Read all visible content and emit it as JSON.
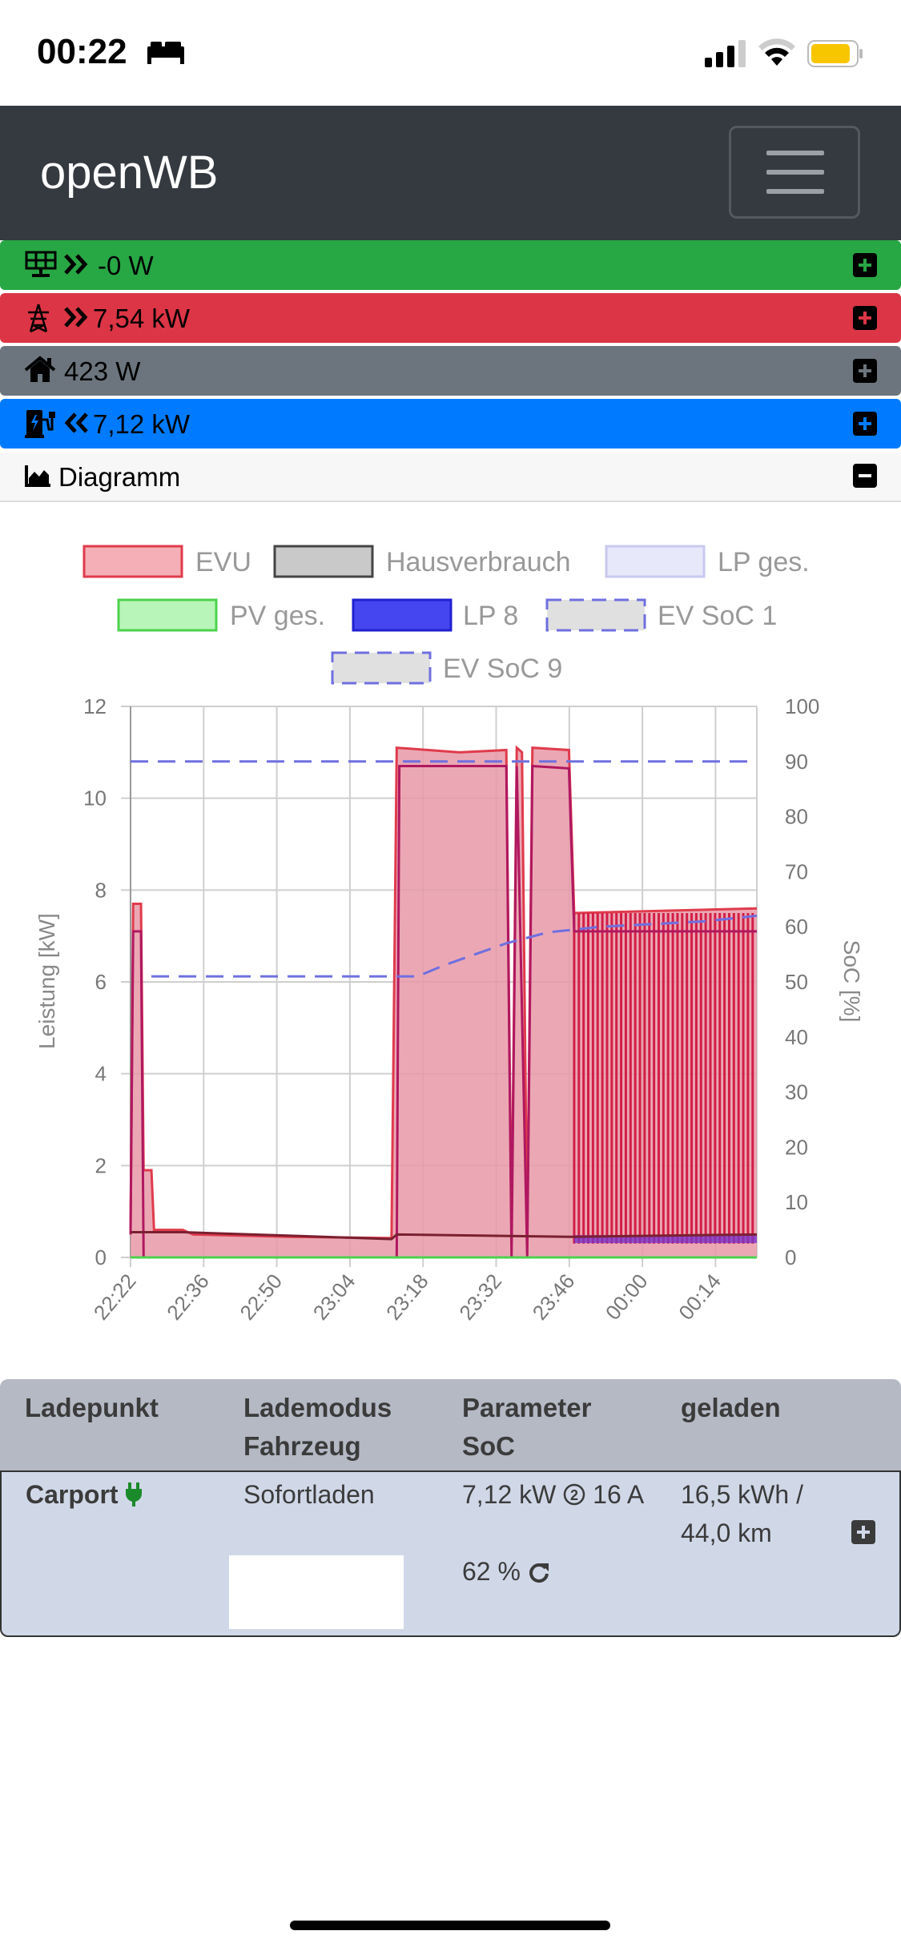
{
  "status": {
    "time": "00:22"
  },
  "app": {
    "title": "openWB"
  },
  "bars": {
    "pv": "-0 W",
    "evu": "7,54 kW",
    "house": "423 W",
    "lp": "7,12 kW"
  },
  "diagram": {
    "title": "Diagramm"
  },
  "colors": {
    "pv": "#28a745",
    "evu": "#dc3545",
    "house": "#6c757d",
    "lp": "#007bff",
    "nav": "#343a40"
  },
  "chart_data": {
    "type": "area",
    "legend": [
      "EVU",
      "Hausverbrauch",
      "LP ges.",
      "PV ges.",
      "LP 8",
      "EV SoC 1",
      "EV SoC 9"
    ],
    "x_ticks": [
      "22:22",
      "22:36",
      "22:50",
      "23:04",
      "23:18",
      "23:32",
      "23:46",
      "00:00",
      "00:14"
    ],
    "ylabel_left": "Leistung [kW]",
    "ylabel_right": "SoC [%]",
    "ylim_left": [
      0,
      12
    ],
    "ylim_right": [
      0,
      100
    ],
    "y_ticks_left": [
      "0",
      "2",
      "4",
      "6",
      "8",
      "10",
      "12"
    ],
    "y_ticks_right": [
      "0",
      "10",
      "20",
      "30",
      "40",
      "50",
      "60",
      "70",
      "80",
      "90",
      "100"
    ],
    "series": [
      {
        "name": "EVU",
        "points": [
          [
            0,
            0.6
          ],
          [
            0.5,
            7.7
          ],
          [
            2,
            7.7
          ],
          [
            2.5,
            1.9
          ],
          [
            4,
            1.9
          ],
          [
            4.5,
            0.6
          ],
          [
            10,
            0.6
          ],
          [
            12,
            0.5
          ],
          [
            30,
            0.45
          ],
          [
            50,
            0.42
          ],
          [
            51,
            11.1
          ],
          [
            63,
            11.0
          ],
          [
            72,
            11.05
          ],
          [
            73,
            0.5
          ],
          [
            74,
            11.1
          ],
          [
            75,
            11.0
          ],
          [
            76,
            0.5
          ],
          [
            77,
            11.1
          ],
          [
            84,
            11.05
          ],
          [
            85,
            7.5
          ],
          [
            120,
            7.6
          ]
        ]
      },
      {
        "name": "Hausverbrauch",
        "points": [
          [
            0,
            0.55
          ],
          [
            10,
            0.55
          ],
          [
            50,
            0.4
          ],
          [
            51,
            0.5
          ],
          [
            84,
            0.45
          ],
          [
            85,
            0.45
          ],
          [
            120,
            0.5
          ]
        ]
      },
      {
        "name": "LP 8",
        "points": [
          [
            0,
            0.5
          ],
          [
            0.5,
            7.1
          ],
          [
            2,
            7.1
          ],
          [
            2.5,
            0.0
          ],
          [
            51,
            0
          ],
          [
            51.5,
            10.7
          ],
          [
            72,
            10.7
          ],
          [
            73,
            0.0
          ],
          [
            74,
            10.7
          ],
          [
            76,
            0.0
          ],
          [
            77,
            10.7
          ],
          [
            84,
            10.65
          ],
          [
            85,
            7.1
          ],
          [
            120,
            7.1
          ]
        ]
      },
      {
        "name": "PV ges.",
        "points": [
          [
            0,
            0
          ],
          [
            120,
            0
          ]
        ]
      },
      {
        "name": "EV SoC 1",
        "points": [
          [
            0,
            90
          ],
          [
            120,
            90
          ]
        ]
      },
      {
        "name": "EV SoC 9",
        "points": [
          [
            4,
            51
          ],
          [
            55,
            51
          ],
          [
            60,
            53
          ],
          [
            66,
            55
          ],
          [
            72,
            57
          ],
          [
            80,
            59
          ],
          [
            90,
            60
          ],
          [
            110,
            61
          ],
          [
            120,
            62
          ]
        ]
      }
    ]
  },
  "table": {
    "headers": [
      [
        "Ladepunkt"
      ],
      [
        "Lademodus",
        "Fahrzeug"
      ],
      [
        "Parameter",
        "SoC"
      ],
      [
        "geladen"
      ]
    ],
    "row": {
      "name": "Carport",
      "mode": "Sofortladen",
      "power": "7,12 kW",
      "phases_current": "16 A",
      "soc": "62 %",
      "charged_kwh": "16,5 kWh /",
      "charged_km": "44,0 km"
    }
  }
}
